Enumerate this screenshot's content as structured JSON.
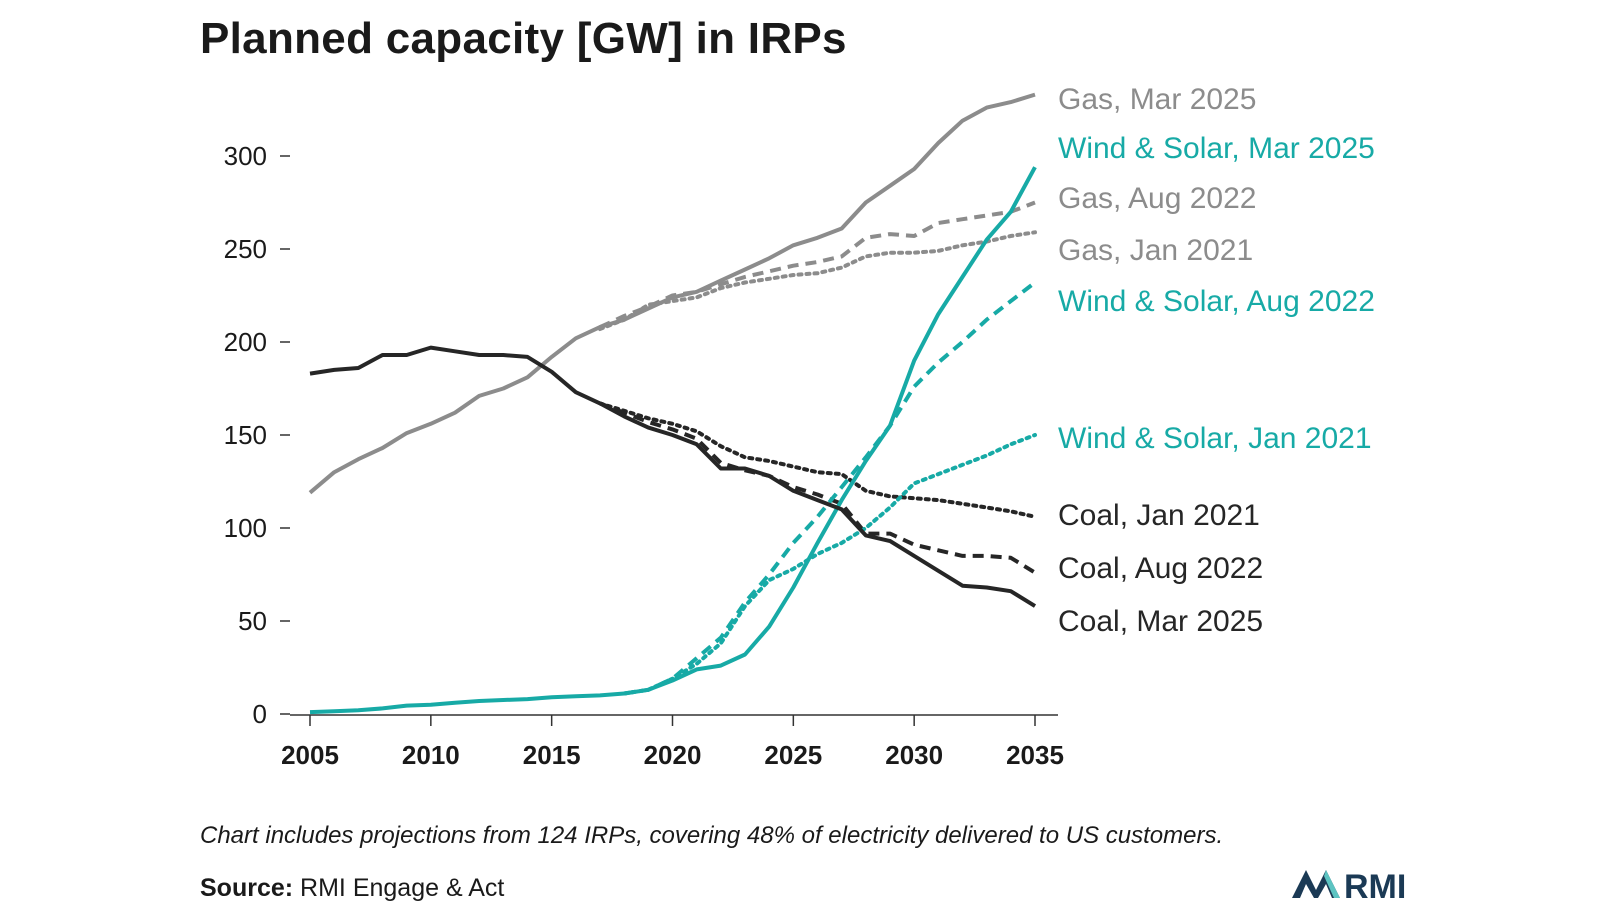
{
  "title": "Planned capacity [GW] in IRPs",
  "note": "Chart includes projections from 124 IRPs, covering 48% of electricity delivered to US customers.",
  "source": {
    "label": "Source:",
    "text": "RMI Engage & Act"
  },
  "logo": {
    "text": "RMI"
  },
  "colors": {
    "gas": "#8c8c8c",
    "wind_solar": "#17aaa6",
    "coal": "#262626",
    "logo_dark": "#1b3a55",
    "logo_teal": "#5cc4c2"
  },
  "chart_data": {
    "type": "line",
    "title": "Planned capacity [GW] in IRPs",
    "xlabel": "",
    "ylabel": "",
    "xlim": [
      2005,
      2035
    ],
    "ylim": [
      0,
      330
    ],
    "x_ticks": [
      2005,
      2010,
      2015,
      2020,
      2025,
      2030,
      2035
    ],
    "y_ticks": [
      0,
      50,
      100,
      150,
      200,
      250,
      300
    ],
    "series": [
      {
        "name": "Gas, Mar 2025",
        "color": "#8c8c8c",
        "style": "solid",
        "x": [
          2005,
          2006,
          2007,
          2008,
          2009,
          2010,
          2011,
          2012,
          2013,
          2014,
          2015,
          2016,
          2017,
          2018,
          2019,
          2020,
          2021,
          2022,
          2023,
          2024,
          2025,
          2026,
          2027,
          2028,
          2029,
          2030,
          2031,
          2032,
          2033,
          2034,
          2035
        ],
        "y": [
          119,
          130,
          137,
          143,
          151,
          156,
          162,
          171,
          175,
          181,
          192,
          202,
          208,
          212,
          218,
          224,
          227,
          233,
          239,
          245,
          252,
          256,
          261,
          275,
          284,
          293,
          307,
          319,
          326,
          329,
          333
        ]
      },
      {
        "name": "Wind & Solar, Mar 2025",
        "color": "#17aaa6",
        "style": "solid",
        "x": [
          2005,
          2006,
          2007,
          2008,
          2009,
          2010,
          2011,
          2012,
          2013,
          2014,
          2015,
          2016,
          2017,
          2018,
          2019,
          2020,
          2021,
          2022,
          2023,
          2024,
          2025,
          2026,
          2027,
          2028,
          2029,
          2030,
          2031,
          2032,
          2033,
          2034,
          2035
        ],
        "y": [
          1,
          1.5,
          2,
          3,
          4.5,
          5,
          6,
          7,
          7.5,
          8,
          9,
          9.5,
          10,
          11,
          13,
          18,
          24,
          26,
          32,
          47,
          68,
          92,
          115,
          136,
          155,
          190,
          215,
          235,
          255,
          270,
          294
        ]
      },
      {
        "name": "Gas, Aug 2022",
        "color": "#8c8c8c",
        "style": "dashed",
        "x": [
          2017,
          2018,
          2019,
          2020,
          2021,
          2022,
          2023,
          2024,
          2025,
          2026,
          2027,
          2028,
          2029,
          2030,
          2031,
          2032,
          2033,
          2034,
          2035
        ],
        "y": [
          208,
          214,
          219,
          225,
          227,
          231,
          235,
          238,
          241,
          243,
          246,
          256,
          258,
          257,
          264,
          266,
          268,
          270,
          275
        ]
      },
      {
        "name": "Gas, Jan 2021",
        "color": "#8c8c8c",
        "style": "dotted",
        "x": [
          2017,
          2018,
          2019,
          2020,
          2021,
          2022,
          2023,
          2024,
          2025,
          2026,
          2027,
          2028,
          2029,
          2030,
          2031,
          2032,
          2033,
          2034,
          2035
        ],
        "y": [
          207,
          212,
          220,
          222,
          224,
          229,
          232,
          234,
          236,
          237,
          240,
          246,
          248,
          248,
          249,
          252,
          254,
          257,
          259
        ]
      },
      {
        "name": "Wind & Solar, Aug 2022",
        "color": "#17aaa6",
        "style": "dashed",
        "x": [
          2018,
          2019,
          2020,
          2021,
          2022,
          2023,
          2024,
          2025,
          2026,
          2027,
          2028,
          2029,
          2030,
          2031,
          2032,
          2033,
          2034,
          2035
        ],
        "y": [
          11,
          13,
          19,
          30,
          41,
          60,
          75,
          92,
          106,
          122,
          138,
          155,
          176,
          189,
          200,
          212,
          222,
          232
        ]
      },
      {
        "name": "Wind & Solar, Jan 2021",
        "color": "#17aaa6",
        "style": "dotted",
        "x": [
          2018,
          2019,
          2020,
          2021,
          2022,
          2023,
          2024,
          2025,
          2026,
          2027,
          2028,
          2029,
          2030,
          2031,
          2032,
          2033,
          2034,
          2035
        ],
        "y": [
          11,
          13,
          19,
          27,
          38,
          58,
          72,
          78,
          86,
          92,
          100,
          111,
          124,
          129,
          134,
          139,
          145,
          150
        ]
      },
      {
        "name": "Coal, Jan 2021",
        "color": "#262626",
        "style": "dotted",
        "x": [
          2017,
          2018,
          2019,
          2020,
          2021,
          2022,
          2023,
          2024,
          2025,
          2026,
          2027,
          2028,
          2029,
          2030,
          2031,
          2032,
          2033,
          2034,
          2035
        ],
        "y": [
          167,
          163,
          159,
          156,
          152,
          144,
          138,
          136,
          133,
          130,
          129,
          120,
          117,
          116,
          115,
          113,
          111,
          109,
          106
        ]
      },
      {
        "name": "Coal, Aug 2022",
        "color": "#262626",
        "style": "dashed",
        "x": [
          2017,
          2018,
          2019,
          2020,
          2021,
          2022,
          2023,
          2024,
          2025,
          2026,
          2027,
          2028,
          2029,
          2030,
          2031,
          2032,
          2033,
          2034,
          2035
        ],
        "y": [
          167,
          162,
          157,
          153,
          148,
          135,
          131,
          128,
          122,
          118,
          113,
          97,
          97,
          91,
          88,
          85,
          85,
          84,
          76
        ]
      },
      {
        "name": "Coal, Mar 2025",
        "color": "#262626",
        "style": "solid",
        "x": [
          2005,
          2006,
          2007,
          2008,
          2009,
          2010,
          2011,
          2012,
          2013,
          2014,
          2015,
          2016,
          2017,
          2018,
          2019,
          2020,
          2021,
          2022,
          2023,
          2024,
          2025,
          2026,
          2027,
          2028,
          2029,
          2030,
          2031,
          2032,
          2033,
          2034,
          2035
        ],
        "y": [
          183,
          185,
          186,
          193,
          193,
          197,
          195,
          193,
          193,
          192,
          184,
          173,
          167,
          160,
          154,
          150,
          145,
          132,
          132,
          128,
          120,
          115,
          110,
          96,
          93,
          85,
          77,
          69,
          68,
          66,
          58
        ]
      }
    ]
  }
}
